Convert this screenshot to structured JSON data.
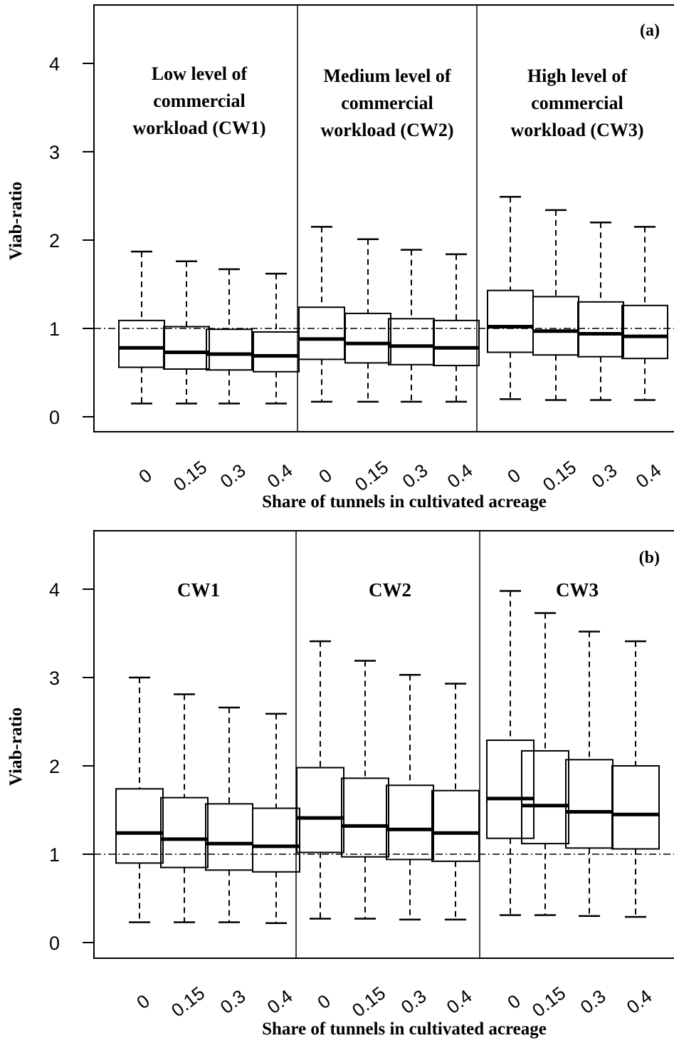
{
  "chart_data": [
    {
      "type": "boxplot",
      "panel_tag": "(a)",
      "ylabel": "Viab-ratio",
      "xlabel": "Share of tunnels in cultivated acreage",
      "ylim": [
        0,
        4.5
      ],
      "yticks": [
        0,
        1,
        2,
        3,
        4
      ],
      "reference_line": 1,
      "groups": [
        {
          "label_lines": [
            "Low level of",
            "commercial",
            "workload (CW1)"
          ],
          "categories": [
            "0",
            "0.15",
            "0.3",
            "0.4"
          ],
          "boxes": [
            {
              "min": 0.15,
              "q1": 0.56,
              "median": 0.78,
              "q3": 1.09,
              "max": 1.87
            },
            {
              "min": 0.15,
              "q1": 0.54,
              "median": 0.73,
              "q3": 1.02,
              "max": 1.76
            },
            {
              "min": 0.15,
              "q1": 0.53,
              "median": 0.71,
              "q3": 0.99,
              "max": 1.67
            },
            {
              "min": 0.15,
              "q1": 0.51,
              "median": 0.69,
              "q3": 0.96,
              "max": 1.62
            }
          ]
        },
        {
          "label_lines": [
            "Medium level of",
            "commercial",
            "workload (CW2)"
          ],
          "categories": [
            "0",
            "0.15",
            "0.3",
            "0.4"
          ],
          "boxes": [
            {
              "min": 0.17,
              "q1": 0.65,
              "median": 0.88,
              "q3": 1.24,
              "max": 2.15
            },
            {
              "min": 0.17,
              "q1": 0.61,
              "median": 0.83,
              "q3": 1.17,
              "max": 2.01
            },
            {
              "min": 0.17,
              "q1": 0.59,
              "median": 0.8,
              "q3": 1.11,
              "max": 1.89
            },
            {
              "min": 0.17,
              "q1": 0.58,
              "median": 0.78,
              "q3": 1.09,
              "max": 1.84
            }
          ]
        },
        {
          "label_lines": [
            "High level of",
            "commercial",
            "workload (CW3)"
          ],
          "categories": [
            "0",
            "0.15",
            "0.3",
            "0.4"
          ],
          "boxes": [
            {
              "min": 0.2,
              "q1": 0.73,
              "median": 1.02,
              "q3": 1.43,
              "max": 2.49
            },
            {
              "min": 0.19,
              "q1": 0.7,
              "median": 0.97,
              "q3": 1.36,
              "max": 2.34
            },
            {
              "min": 0.19,
              "q1": 0.68,
              "median": 0.94,
              "q3": 1.3,
              "max": 2.2
            },
            {
              "min": 0.19,
              "q1": 0.66,
              "median": 0.91,
              "q3": 1.26,
              "max": 2.15
            }
          ]
        }
      ]
    },
    {
      "type": "boxplot",
      "panel_tag": "(b)",
      "ylabel": "Viab-ratio",
      "xlabel": "Share of tunnels in cultivated acreage",
      "ylim": [
        0,
        4.5
      ],
      "yticks": [
        0,
        1,
        2,
        3,
        4
      ],
      "reference_line": 1,
      "groups": [
        {
          "label_lines": [
            "CW1"
          ],
          "categories": [
            "0",
            "0.15",
            "0.3",
            "0.4"
          ],
          "boxes": [
            {
              "min": 0.23,
              "q1": 0.9,
              "median": 1.24,
              "q3": 1.74,
              "max": 3.0
            },
            {
              "min": 0.23,
              "q1": 0.85,
              "median": 1.17,
              "q3": 1.64,
              "max": 2.81
            },
            {
              "min": 0.23,
              "q1": 0.82,
              "median": 1.12,
              "q3": 1.57,
              "max": 2.66
            },
            {
              "min": 0.22,
              "q1": 0.8,
              "median": 1.09,
              "q3": 1.52,
              "max": 2.59
            }
          ]
        },
        {
          "label_lines": [
            "CW2"
          ],
          "categories": [
            "0",
            "0.15",
            "0.3",
            "0.4"
          ],
          "boxes": [
            {
              "min": 0.27,
              "q1": 1.02,
              "median": 1.41,
              "q3": 1.98,
              "max": 3.41
            },
            {
              "min": 0.27,
              "q1": 0.97,
              "median": 1.32,
              "q3": 1.86,
              "max": 3.19
            },
            {
              "min": 0.26,
              "q1": 0.94,
              "median": 1.28,
              "q3": 1.78,
              "max": 3.03
            },
            {
              "min": 0.26,
              "q1": 0.92,
              "median": 1.24,
              "q3": 1.72,
              "max": 2.93
            }
          ]
        },
        {
          "label_lines": [
            "CW3"
          ],
          "categories": [
            "0",
            "0.15",
            "0.3",
            "0.4"
          ],
          "boxes": [
            {
              "min": 0.31,
              "q1": 1.18,
              "median": 1.63,
              "q3": 2.29,
              "max": 3.98
            },
            {
              "min": 0.31,
              "q1": 1.12,
              "median": 1.55,
              "q3": 2.17,
              "max": 3.73
            },
            {
              "min": 0.3,
              "q1": 1.07,
              "median": 1.48,
              "q3": 2.07,
              "max": 3.52
            },
            {
              "min": 0.29,
              "q1": 1.06,
              "median": 1.45,
              "q3": 2.0,
              "max": 3.41
            }
          ]
        }
      ]
    }
  ]
}
